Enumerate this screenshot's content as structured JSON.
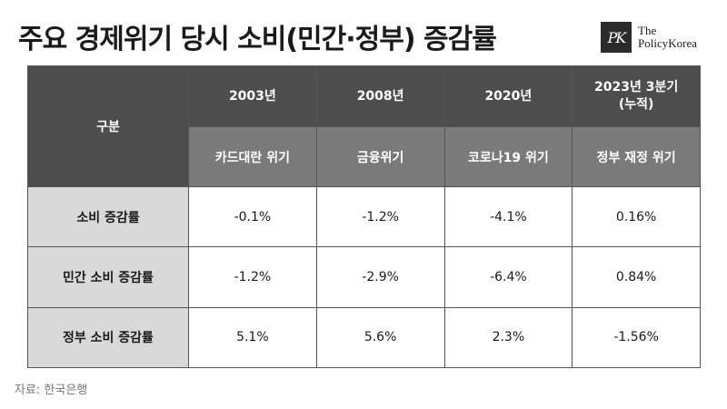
{
  "title": "주요 경제위기 당시 소비(민간·정부) 증감률",
  "logo": {
    "mark": "PK",
    "line1": "The",
    "line2": "PolicyKorea"
  },
  "chart_data": {
    "type": "table",
    "corner_header": "구분",
    "columns": [
      {
        "year": "2003년",
        "event": "카드대란 위기"
      },
      {
        "year": "2008년",
        "event": "금융위기"
      },
      {
        "year": "2020년",
        "event": "코로나19 위기"
      },
      {
        "year": "2023년 3분기\n(누적)",
        "event": "정부 재정 위기"
      }
    ],
    "rows": [
      {
        "label": "소비 증감률",
        "values": [
          "-0.1%",
          "-1.2%",
          "-4.1%",
          "0.16%"
        ]
      },
      {
        "label": "민간 소비 증감률",
        "values": [
          "-1.2%",
          "-2.9%",
          "-6.4%",
          "0.84%"
        ]
      },
      {
        "label": "정부 소비 증감률",
        "values": [
          "5.1%",
          "5.6%",
          "2.3%",
          "-1.56%"
        ]
      }
    ]
  },
  "source": "자료: 한국은행",
  "colors": {
    "header_dark": "#4d4d4d",
    "header_mid": "#7a7a7a",
    "row_label_bg": "#d9d9d9",
    "cell_bg": "#ffffff",
    "border": "#555555"
  }
}
